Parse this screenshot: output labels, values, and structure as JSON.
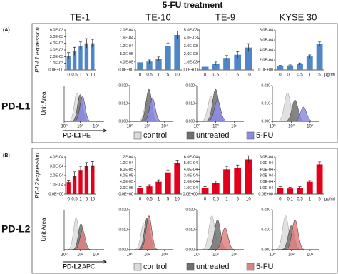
{
  "title": "5-FU treatment",
  "cell_lines": [
    "TE-1",
    "TE-10",
    "TE-9",
    "KYSE 30"
  ],
  "sections": [
    {
      "tag": "(A)",
      "name": "PD-L1",
      "ylabel": "PD-L1 expression",
      "unit": "μg/ml",
      "hist_ylabel": "Unit Area",
      "hist_xlabel": "PD-L1",
      "hist_xlabel_suffix": "PE",
      "legend": [
        {
          "name": "control",
          "color": "#dcdcdc"
        },
        {
          "name": "untreated",
          "color": "#707070"
        },
        {
          "name": "5-FU",
          "color": "#8c8ce6"
        }
      ]
    },
    {
      "tag": "(B)",
      "name": "PD-L2",
      "ylabel": "PD-L2 expression",
      "unit": "μg/ml",
      "hist_ylabel": "Unit Area",
      "hist_xlabel": "PD-L2",
      "hist_xlabel_suffix": "APC",
      "legend": [
        {
          "name": "control",
          "color": "#dcdcdc"
        },
        {
          "name": "untreated",
          "color": "#707070"
        },
        {
          "name": "5-FU",
          "color": "#e08080"
        }
      ]
    }
  ],
  "chart_data": [
    {
      "type": "bar",
      "color": "#4f86c6",
      "categories": [
        "0",
        "0.5",
        "1",
        "5",
        "10"
      ],
      "values": [
        0.0021,
        0.0028,
        0.0036,
        0.004,
        0.004
      ],
      "errors": [
        0.0005,
        0.0006,
        0.0006,
        0.0007,
        0.0006
      ],
      "ylim": [
        0,
        0.006
      ],
      "yticks": [
        {
          "value": 0,
          "label": "0.0E+00"
        },
        {
          "value": 0.001,
          "label": "1.0E-03"
        },
        {
          "value": 0.002,
          "label": "2.0E-03"
        },
        {
          "value": 0.003,
          "label": "3.0E-03"
        },
        {
          "value": 0.004,
          "label": "4.0E-03"
        },
        {
          "value": 0.005,
          "label": "5.0E-03"
        },
        {
          "value": 0.006,
          "label": "6.0E-03"
        }
      ]
    },
    {
      "type": "bar",
      "color": "#4f86c6",
      "categories": [
        "0",
        "0.5",
        "1",
        "5",
        "10"
      ],
      "values": [
        3.8e-05,
        4.2e-05,
        5.5e-05,
        0.00012,
        0.000175
      ],
      "errors": [
        6e-06,
        8e-06,
        1e-05,
        1.5e-05,
        2e-05
      ],
      "ylim": [
        0,
        0.0002
      ],
      "yticks": [
        {
          "value": 0,
          "label": "0.0E+00"
        },
        {
          "value": 4e-05,
          "label": "4.0E-05"
        },
        {
          "value": 8e-05,
          "label": "8.0E-05"
        },
        {
          "value": 0.00012,
          "label": "1.2E-04"
        },
        {
          "value": 0.00016,
          "label": "1.6E-04"
        },
        {
          "value": 0.0002,
          "label": "2.0E-04"
        }
      ]
    },
    {
      "type": "bar",
      "color": "#4f86c6",
      "categories": [
        "0",
        "0.5",
        "1",
        "5",
        "10"
      ],
      "values": [
        0.0004,
        0.0008,
        0.0015,
        0.0019,
        0.0028
      ],
      "errors": [
        0.0001,
        0.0002,
        0.0003,
        0.0004,
        0.0005
      ],
      "ylim": [
        0,
        0.005
      ],
      "yticks": [
        {
          "value": 0,
          "label": "0.0E+00"
        },
        {
          "value": 0.001,
          "label": "1.0E-03"
        },
        {
          "value": 0.002,
          "label": "2.0E-03"
        },
        {
          "value": 0.003,
          "label": "3.0E-03"
        },
        {
          "value": 0.004,
          "label": "4.0E-03"
        },
        {
          "value": 0.005,
          "label": "5.0E-03"
        }
      ]
    },
    {
      "type": "bar",
      "color": "#4f86c6",
      "categories": [
        "0",
        "0.1",
        "0.5",
        "1",
        "5"
      ],
      "values": [
        8e-05,
        9e-05,
        0.00012,
        0.00027,
        0.00052
      ],
      "errors": [
        1e-05,
        1e-05,
        2e-05,
        3e-05,
        4e-05
      ],
      "ylim": [
        0,
        0.0008
      ],
      "yticks": [
        {
          "value": 0,
          "label": "0.0E+00"
        },
        {
          "value": 0.0002,
          "label": "2.0E-04"
        },
        {
          "value": 0.0004,
          "label": "4.0E-04"
        },
        {
          "value": 0.0006,
          "label": "6.0E-04"
        },
        {
          "value": 0.0008,
          "label": "8.0E-04"
        }
      ]
    },
    {
      "type": "density",
      "xlim": [
        0,
        5
      ],
      "ylim": [
        0,
        0.02
      ],
      "x": [
        1.6,
        2.0,
        2.3
      ],
      "values": [
        0.016,
        0.015,
        0.014
      ],
      "xticks": [
        {
          "value": 0,
          "label": "10⁰"
        },
        {
          "value": 2,
          "label": "10²"
        },
        {
          "value": 4,
          "label": "10⁴"
        }
      ]
    },
    {
      "type": "density",
      "xlim": [
        0,
        5
      ],
      "ylim": [
        0,
        0.02
      ],
      "x": [
        2.0,
        2.2,
        2.6
      ],
      "values": [
        0.012,
        0.018,
        0.013
      ],
      "xticks": [
        {
          "value": 0,
          "label": "10⁰"
        },
        {
          "value": 2,
          "label": "10²"
        },
        {
          "value": 4,
          "label": "10⁴"
        }
      ],
      "yticks": [
        {
          "value": 0,
          "label": "0.000"
        },
        {
          "value": 0.01,
          "label": "0.010"
        },
        {
          "value": 0.02,
          "label": "0.020"
        }
      ]
    },
    {
      "type": "density",
      "xlim": [
        0,
        5
      ],
      "ylim": [
        0,
        0.02
      ],
      "x": [
        1.5,
        2.0,
        2.2
      ],
      "values": [
        0.014,
        0.018,
        0.012
      ],
      "xticks": [
        {
          "value": 0,
          "label": "10⁰"
        },
        {
          "value": 2,
          "label": "10²"
        },
        {
          "value": 4,
          "label": "10⁴"
        }
      ],
      "yticks": [
        {
          "value": 0,
          "label": "0.000"
        },
        {
          "value": 0.01,
          "label": "0.010"
        },
        {
          "value": 0.02,
          "label": "0.020"
        }
      ]
    },
    {
      "type": "density",
      "xlim": [
        0,
        5
      ],
      "ylim": [
        0,
        0.02
      ],
      "x": [
        1.6,
        2.4,
        3.3
      ],
      "values": [
        0.016,
        0.012,
        0.008
      ],
      "xticks": [
        {
          "value": 0,
          "label": "10⁰"
        },
        {
          "value": 2,
          "label": "10²"
        },
        {
          "value": 4,
          "label": "10⁴"
        }
      ],
      "yticks": [
        {
          "value": 0,
          "label": "0.000"
        },
        {
          "value": 0.01,
          "label": "0.010"
        },
        {
          "value": 0.02,
          "label": "0.020"
        }
      ]
    },
    {
      "type": "bar",
      "color": "#e3001b",
      "categories": [
        "0",
        "0.5",
        "1",
        "5",
        "10"
      ],
      "values": [
        0.00013,
        0.0002,
        0.00026,
        0.0003,
        0.00031
      ],
      "errors": [
        2e-05,
        4e-05,
        4e-05,
        4e-05,
        4e-05
      ],
      "ylim": [
        0,
        0.0004
      ],
      "yticks": [
        {
          "value": 0,
          "label": "0.0E+00"
        },
        {
          "value": 0.0001,
          "label": "1.0E-04"
        },
        {
          "value": 0.0002,
          "label": "2.0E-04"
        },
        {
          "value": 0.0003,
          "label": "3.0E-04"
        },
        {
          "value": 0.0004,
          "label": "4.0E-04"
        }
      ]
    },
    {
      "type": "bar",
      "color": "#e3001b",
      "categories": [
        "0",
        "0.5",
        "1",
        "5",
        "10"
      ],
      "values": [
        2e-05,
        2.5e-05,
        4e-05,
        7e-05,
        0.0001
      ],
      "errors": [
        4e-06,
        5e-06,
        6e-06,
        8e-06,
        1e-05
      ],
      "ylim": [
        0,
        0.00012
      ],
      "yticks": [
        {
          "value": 0,
          "label": "0.0E+00"
        },
        {
          "value": 2e-05,
          "label": "2.0E-05"
        },
        {
          "value": 4e-05,
          "label": "4.0E-05"
        },
        {
          "value": 6e-05,
          "label": "6.0E-05"
        },
        {
          "value": 8e-05,
          "label": "8.0E-05"
        },
        {
          "value": 0.0001,
          "label": "1.0E-04"
        },
        {
          "value": 0.00012,
          "label": "1.2E-04"
        }
      ]
    },
    {
      "type": "bar",
      "color": "#e3001b",
      "categories": [
        "0",
        "0.5",
        "1",
        "5",
        "10"
      ],
      "values": [
        0.0001,
        0.00018,
        0.0004,
        0.00042,
        0.00056
      ],
      "errors": [
        2e-05,
        3e-05,
        5e-05,
        5e-05,
        6e-05
      ],
      "ylim": [
        0,
        0.0006
      ],
      "yticks": [
        {
          "value": 0,
          "label": "0.0E+00"
        },
        {
          "value": 0.0001,
          "label": "1.0E-04"
        },
        {
          "value": 0.0002,
          "label": "2.0E-04"
        },
        {
          "value": 0.0003,
          "label": "3.0E-04"
        },
        {
          "value": 0.0004,
          "label": "4.0E-04"
        },
        {
          "value": 0.0005,
          "label": "5.0E-04"
        },
        {
          "value": 0.0006,
          "label": "6.0E-04"
        }
      ]
    },
    {
      "type": "bar",
      "color": "#e3001b",
      "categories": [
        "0",
        "0.1",
        "0.5",
        "1",
        "5"
      ],
      "values": [
        0.0001,
        9e-05,
        0.0001,
        0.0002,
        0.00048
      ],
      "errors": [
        2e-05,
        2e-05,
        2e-05,
        2e-05,
        4e-05
      ],
      "ylim": [
        0,
        0.0006
      ],
      "yticks": [
        {
          "value": 0,
          "label": "0.0E+00"
        },
        {
          "value": 0.0001,
          "label": "1.0E-04"
        },
        {
          "value": 0.0002,
          "label": "2.0E-04"
        },
        {
          "value": 0.0003,
          "label": "3.0E-04"
        },
        {
          "value": 0.0004,
          "label": "4.0E-04"
        },
        {
          "value": 0.0005,
          "label": "5.0E-04"
        },
        {
          "value": 0.0006,
          "label": "6.0E-04"
        }
      ]
    },
    {
      "type": "density",
      "xlim": [
        0,
        5
      ],
      "ylim": [
        0,
        0.02
      ],
      "x": [
        1.5,
        2.1,
        2.3
      ],
      "values": [
        0.016,
        0.013,
        0.01
      ],
      "xticks": [
        {
          "value": 0,
          "label": "10⁰"
        },
        {
          "value": 2,
          "label": "10²"
        },
        {
          "value": 4,
          "label": "10⁴"
        }
      ]
    },
    {
      "type": "density",
      "xlim": [
        0,
        5
      ],
      "ylim": [
        0,
        0.02
      ],
      "x": [
        1.6,
        2.0,
        2.2
      ],
      "values": [
        0.013,
        0.016,
        0.017
      ],
      "xticks": [
        {
          "value": 0,
          "label": "10⁰"
        },
        {
          "value": 2,
          "label": "10²"
        },
        {
          "value": 4,
          "label": "10⁴"
        }
      ],
      "yticks": [
        {
          "value": 0,
          "label": "0.000"
        },
        {
          "value": 0.01,
          "label": "0.010"
        },
        {
          "value": 0.02,
          "label": "0.020"
        }
      ]
    },
    {
      "type": "density",
      "xlim": [
        0,
        5
      ],
      "ylim": [
        0,
        0.02
      ],
      "x": [
        1.6,
        2.2,
        3.0
      ],
      "values": [
        0.017,
        0.015,
        0.011
      ],
      "xticks": [
        {
          "value": 0,
          "label": "10⁰"
        },
        {
          "value": 2,
          "label": "10²"
        },
        {
          "value": 4,
          "label": "10⁴"
        }
      ],
      "yticks": [
        {
          "value": 0,
          "label": "0.000"
        },
        {
          "value": 0.01,
          "label": "0.010"
        },
        {
          "value": 0.02,
          "label": "0.020"
        }
      ]
    },
    {
      "type": "density",
      "xlim": [
        0,
        5
      ],
      "ylim": [
        0,
        0.02
      ],
      "x": [
        1.4,
        2.0,
        2.4
      ],
      "values": [
        0.017,
        0.012,
        0.015
      ],
      "xticks": [
        {
          "value": 0,
          "label": "10⁰"
        },
        {
          "value": 2,
          "label": "10²"
        },
        {
          "value": 4,
          "label": "10⁴"
        }
      ],
      "yticks": [
        {
          "value": 0,
          "label": "0.000"
        },
        {
          "value": 0.01,
          "label": "0.010"
        },
        {
          "value": 0.02,
          "label": "0.020"
        }
      ]
    }
  ]
}
